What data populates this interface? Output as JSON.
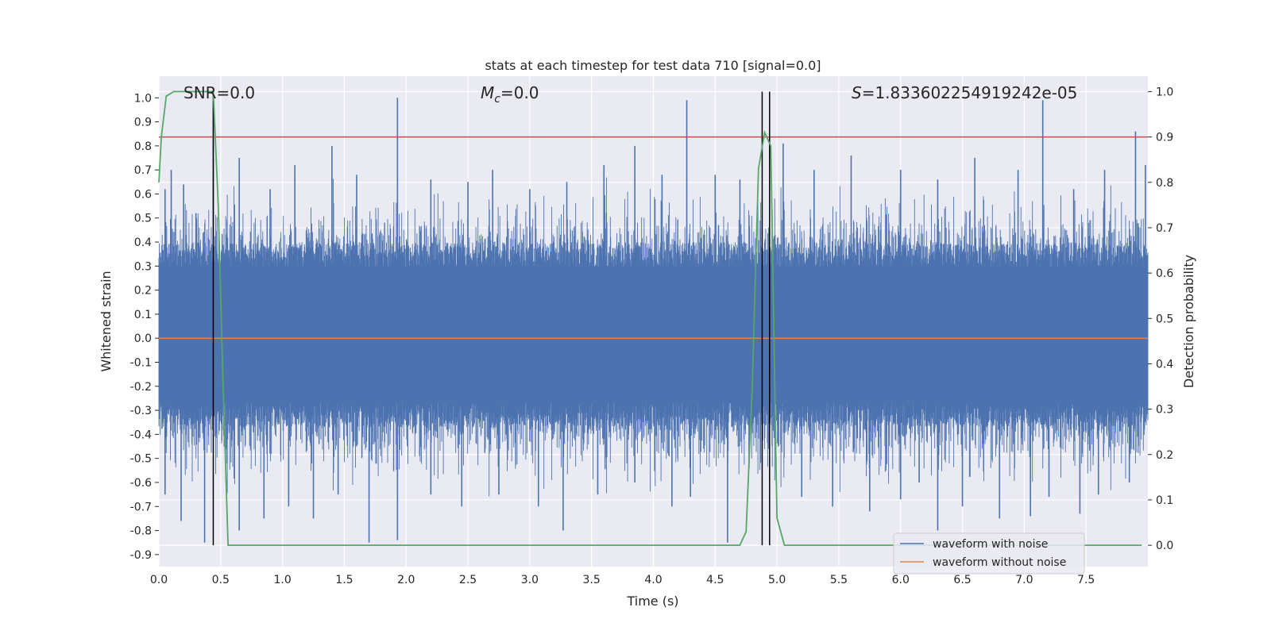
{
  "chart_data": {
    "type": "line",
    "title": "stats at each timestep for test data 710 [signal=0.0]",
    "xlabel": "Time (s)",
    "ylabel": "Whitened strain",
    "y2label": "Detection probability",
    "xlim": [
      0.0,
      8.0
    ],
    "ylim": [
      -0.95,
      1.09
    ],
    "y2lim": [
      -0.047,
      1.034
    ],
    "x_ticks": [
      "0.0",
      "0.5",
      "1.0",
      "1.5",
      "2.0",
      "2.5",
      "3.0",
      "3.5",
      "4.0",
      "4.5",
      "5.0",
      "5.5",
      "6.0",
      "6.5",
      "7.0",
      "7.5"
    ],
    "y_ticks": [
      "1.0",
      "0.9",
      "0.8",
      "0.7",
      "0.6",
      "0.5",
      "0.4",
      "0.3",
      "0.2",
      "0.1",
      "0.0",
      "-0.1",
      "-0.2",
      "-0.3",
      "-0.4",
      "-0.5",
      "-0.6",
      "-0.7",
      "-0.8",
      "-0.9"
    ],
    "y2_ticks": [
      "1.0",
      "0.9",
      "0.8",
      "0.7",
      "0.6",
      "0.5",
      "0.4",
      "0.3",
      "0.2",
      "0.1",
      "0.0"
    ],
    "grid": true,
    "annotations": {
      "snr": "SNR=0.0",
      "mc_symbol": "M",
      "mc_sub": "c",
      "mc_value": "=0.0",
      "s_symbol": "S",
      "s_value": "=1.833602254919242e-05"
    },
    "threshold_y2": 0.9,
    "vertical_markers_x": [
      0.44,
      4.88,
      4.94
    ],
    "legend": {
      "placement": "lower-right",
      "entries": [
        "waveform with noise",
        "waveform without noise"
      ]
    },
    "series": [
      {
        "name": "waveform with noise",
        "color": "#4c72b0",
        "description_kind": "dense noise",
        "band_low": -0.35,
        "band_high": 0.38,
        "spikes": [
          [
            0.05,
            0.62
          ],
          [
            0.1,
            0.7
          ],
          [
            0.2,
            0.64
          ],
          [
            0.3,
            0.52
          ],
          [
            0.44,
            0.98
          ],
          [
            0.65,
            0.75
          ],
          [
            0.9,
            0.62
          ],
          [
            1.1,
            0.72
          ],
          [
            1.4,
            0.8
          ],
          [
            1.6,
            0.68
          ],
          [
            1.93,
            1.0
          ],
          [
            2.2,
            0.66
          ],
          [
            2.5,
            0.65
          ],
          [
            2.7,
            0.7
          ],
          [
            3.0,
            0.62
          ],
          [
            3.3,
            0.65
          ],
          [
            3.6,
            0.72
          ],
          [
            3.85,
            0.8
          ],
          [
            4.07,
            0.68
          ],
          [
            4.27,
            0.99
          ],
          [
            4.5,
            0.68
          ],
          [
            4.7,
            0.66
          ],
          [
            5.05,
            0.81
          ],
          [
            5.3,
            0.7
          ],
          [
            5.6,
            0.76
          ],
          [
            6.0,
            0.7
          ],
          [
            6.3,
            0.66
          ],
          [
            6.6,
            0.75
          ],
          [
            6.95,
            0.7
          ],
          [
            7.15,
            0.99
          ],
          [
            7.4,
            0.62
          ],
          [
            7.65,
            0.7
          ],
          [
            7.9,
            0.86
          ],
          [
            7.98,
            0.72
          ]
        ],
        "dips": [
          [
            0.05,
            -0.65
          ],
          [
            0.18,
            -0.76
          ],
          [
            0.37,
            -0.85
          ],
          [
            0.65,
            -0.8
          ],
          [
            0.85,
            -0.75
          ],
          [
            1.05,
            -0.7
          ],
          [
            1.25,
            -0.75
          ],
          [
            1.45,
            -0.65
          ],
          [
            1.7,
            -0.85
          ],
          [
            1.93,
            -0.84
          ],
          [
            2.2,
            -0.65
          ],
          [
            2.45,
            -0.7
          ],
          [
            2.75,
            -0.65
          ],
          [
            3.07,
            -0.7
          ],
          [
            3.27,
            -0.8
          ],
          [
            3.55,
            -0.65
          ],
          [
            3.85,
            -0.6
          ],
          [
            4.15,
            -0.7
          ],
          [
            4.3,
            -0.66
          ],
          [
            4.6,
            -0.85
          ],
          [
            5.2,
            -0.66
          ],
          [
            5.45,
            -0.7
          ],
          [
            5.75,
            -0.72
          ],
          [
            6.0,
            -0.67
          ],
          [
            6.15,
            -0.6
          ],
          [
            6.3,
            -0.8
          ],
          [
            6.5,
            -0.7
          ],
          [
            6.8,
            -0.75
          ],
          [
            7.05,
            -0.74
          ],
          [
            7.2,
            -0.66
          ],
          [
            7.45,
            -0.73
          ],
          [
            7.6,
            -0.65
          ],
          [
            7.85,
            -0.6
          ]
        ]
      },
      {
        "name": "waveform without noise",
        "color": "#dd8452",
        "x": [
          0.0,
          8.0
        ],
        "y": [
          0.0,
          0.0
        ]
      },
      {
        "axis": "y2",
        "color": "#55a868",
        "x": [
          0.0,
          0.02,
          0.06,
          0.12,
          0.2,
          0.3,
          0.4,
          0.44,
          0.48,
          0.52,
          0.56,
          0.6,
          1.0,
          2.0,
          3.0,
          4.0,
          4.7,
          4.75,
          4.8,
          4.85,
          4.9,
          4.95,
          5.0,
          5.06,
          5.5,
          6.0,
          7.0,
          7.95
        ],
        "y": [
          0.8,
          0.9,
          0.99,
          1.0,
          1.0,
          1.0,
          1.0,
          1.0,
          0.75,
          0.35,
          0.0,
          0.0,
          0.0,
          0.0,
          0.0,
          0.0,
          0.0,
          0.03,
          0.35,
          0.83,
          0.91,
          0.88,
          0.06,
          0.0,
          0.0,
          0.0,
          0.0,
          0.0
        ]
      }
    ]
  }
}
